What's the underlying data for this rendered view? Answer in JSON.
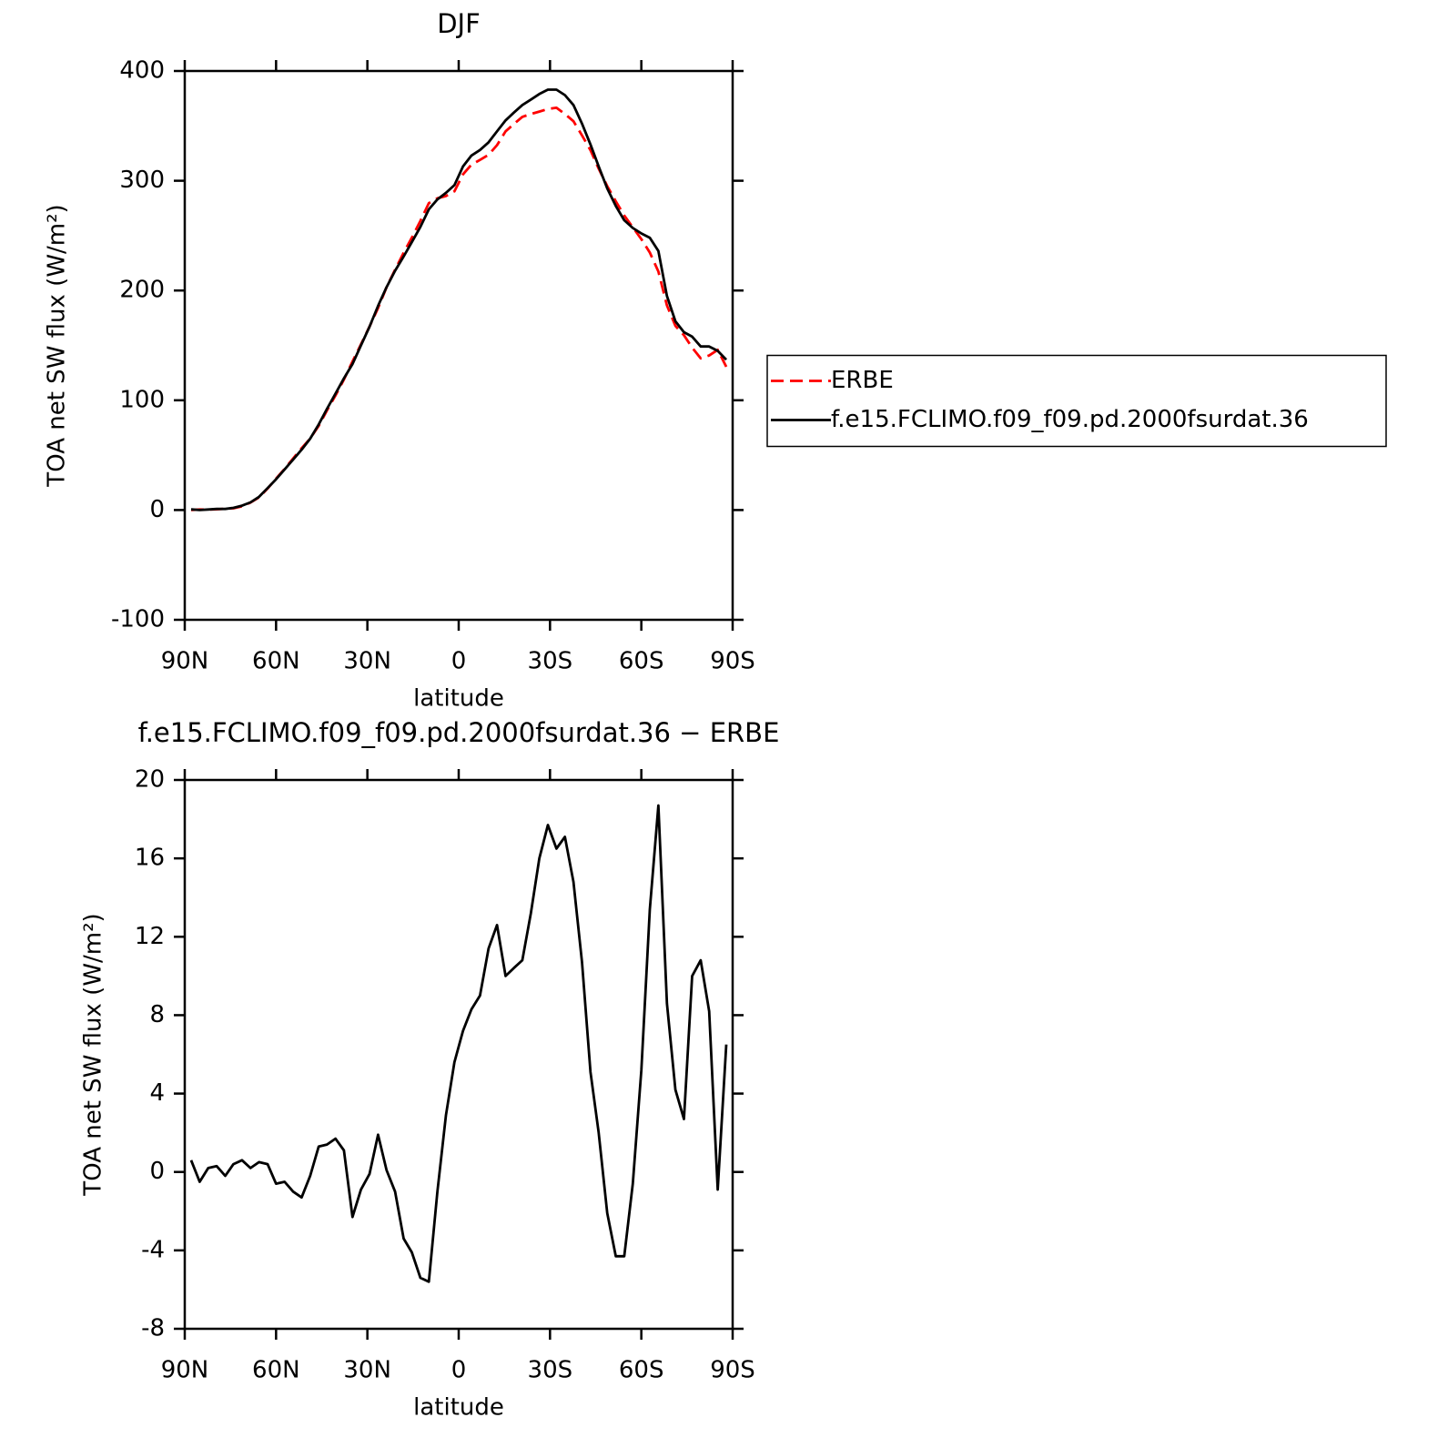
{
  "chart_data": [
    {
      "type": "line",
      "title": "DJF",
      "xlabel": "latitude",
      "ylabel": "TOA net SW flux (W/m²)",
      "x": [
        87.9,
        85.1,
        82.3,
        79.5,
        76.7,
        74.0,
        71.2,
        68.4,
        65.6,
        62.8,
        60.0,
        57.2,
        54.4,
        51.6,
        48.8,
        46.0,
        43.3,
        40.5,
        37.7,
        34.9,
        32.1,
        29.3,
        26.5,
        23.7,
        20.9,
        18.1,
        15.4,
        12.6,
        9.8,
        7.0,
        4.2,
        1.4,
        -1.4,
        -4.2,
        -7.0,
        -9.8,
        -12.6,
        -15.4,
        -18.1,
        -20.9,
        -23.7,
        -26.5,
        -29.3,
        -32.1,
        -34.9,
        -37.7,
        -40.5,
        -43.3,
        -46.0,
        -48.8,
        -51.6,
        -54.4,
        -57.2,
        -60.0,
        -62.8,
        -65.6,
        -68.4,
        -71.2,
        -74.0,
        -76.7,
        -79.5,
        -82.3,
        -85.1,
        -87.9
      ],
      "xlim": [
        90,
        -90
      ],
      "xticks": [
        {
          "value": 90,
          "label": "90N"
        },
        {
          "value": 60,
          "label": "60N"
        },
        {
          "value": 30,
          "label": "30N"
        },
        0,
        {
          "value": -30,
          "label": "30S"
        },
        {
          "value": -60,
          "label": "60S"
        },
        {
          "value": -90,
          "label": "90S"
        }
      ],
      "ylim": [
        -100,
        400
      ],
      "yticks": [
        -100,
        0,
        100,
        200,
        300,
        400
      ],
      "legend": "right",
      "series": [
        {
          "name": "ERBE",
          "color": "#ff0000",
          "linestyle": "dashed",
          "values": [
            0,
            0.5,
            0.3,
            0.7,
            1.2,
            1.6,
            3.4,
            6.8,
            11.5,
            19.6,
            28.6,
            37.5,
            47,
            56.3,
            65.2,
            76.7,
            90.6,
            104.3,
            118.9,
            135.3,
            150.9,
            167.1,
            184.1,
            202.9,
            219,
            234.4,
            248.1,
            263.4,
            279.6,
            284,
            286.1,
            290.4,
            305.8,
            314.7,
            319,
            323.6,
            332.4,
            345,
            351.6,
            358.2,
            360.8,
            363,
            365.3,
            366.5,
            360.9,
            354.2,
            341.3,
            327.9,
            311,
            295.1,
            281.3,
            268.3,
            257.6,
            246.8,
            234.6,
            217.3,
            186.4,
            167.8,
            159.3,
            148,
            138.2,
            140.8,
            145.9,
            130.5
          ]
        },
        {
          "name": "f.e15.FCLIMO.f09_f09.pd.2000fsurdat.36",
          "color": "#000000",
          "linestyle": "solid",
          "values": [
            0.6,
            0,
            0.5,
            1.0,
            1.0,
            2,
            4,
            7,
            12,
            20,
            28,
            37,
            46,
            55,
            65,
            78,
            92,
            106,
            120,
            133,
            150,
            167,
            186,
            203,
            218,
            231,
            244,
            258,
            274,
            283,
            289,
            296,
            313,
            323,
            328,
            335,
            345,
            355,
            362,
            369,
            374,
            379,
            383,
            383,
            378,
            369,
            352,
            333,
            313,
            293,
            277,
            264,
            257,
            252,
            248,
            236,
            195,
            172,
            162,
            158,
            149,
            149,
            145,
            137
          ]
        }
      ]
    },
    {
      "type": "line",
      "title": "f.e15.FCLIMO.f09_f09.pd.2000fsurdat.36 − ERBE",
      "xlabel": "latitude",
      "ylabel": "TOA net SW flux (W/m²)",
      "x": [
        87.9,
        85.1,
        82.3,
        79.5,
        76.7,
        74.0,
        71.2,
        68.4,
        65.6,
        62.8,
        60.0,
        57.2,
        54.4,
        51.6,
        48.8,
        46.0,
        43.3,
        40.5,
        37.7,
        34.9,
        32.1,
        29.3,
        26.5,
        23.7,
        20.9,
        18.1,
        15.4,
        12.6,
        9.8,
        7.0,
        4.2,
        1.4,
        -1.4,
        -4.2,
        -7.0,
        -9.8,
        -12.6,
        -15.4,
        -18.1,
        -20.9,
        -23.7,
        -26.5,
        -29.3,
        -32.1,
        -34.9,
        -37.7,
        -40.5,
        -43.3,
        -46.0,
        -48.8,
        -51.6,
        -54.4,
        -57.2,
        -60.0,
        -62.8,
        -65.6,
        -68.4,
        -71.2,
        -74.0,
        -76.7,
        -79.5,
        -82.3,
        -85.1,
        -87.9
      ],
      "xlim": [
        90,
        -90
      ],
      "xticks": [
        {
          "value": 90,
          "label": "90N"
        },
        {
          "value": 60,
          "label": "60N"
        },
        {
          "value": 30,
          "label": "30N"
        },
        0,
        {
          "value": -30,
          "label": "30S"
        },
        {
          "value": -60,
          "label": "60S"
        },
        {
          "value": -90,
          "label": "90S"
        }
      ],
      "ylim": [
        -8,
        20
      ],
      "yticks": [
        -8,
        -4,
        0,
        4,
        8,
        12,
        16,
        20
      ],
      "series": [
        {
          "color": "#000000",
          "linestyle": "solid",
          "values": [
            0.6,
            -0.5,
            0.2,
            0.3,
            -0.2,
            0.4,
            0.6,
            0.2,
            0.5,
            0.4,
            -0.6,
            -0.5,
            -1.0,
            -1.3,
            -0.2,
            1.3,
            1.4,
            1.7,
            1.1,
            -2.3,
            -0.9,
            -0.1,
            1.9,
            0.1,
            -1.0,
            -3.4,
            -4.1,
            -5.4,
            -5.6,
            -1.0,
            2.9,
            5.6,
            7.2,
            8.3,
            9.0,
            11.4,
            12.6,
            10.0,
            10.4,
            10.8,
            13.2,
            16.0,
            17.7,
            16.5,
            17.1,
            14.8,
            10.7,
            5.1,
            2.0,
            -2.1,
            -4.3,
            -4.3,
            -0.6,
            5.2,
            13.4,
            18.7,
            8.6,
            4.2,
            2.7,
            10.0,
            10.8,
            8.2,
            -0.9,
            6.5
          ]
        }
      ]
    }
  ]
}
